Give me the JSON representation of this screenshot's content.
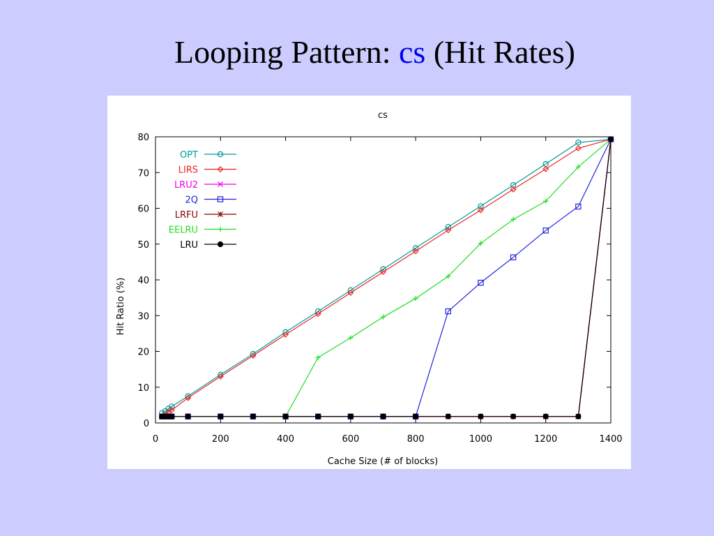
{
  "slide": {
    "title_prefix": "Looping Pattern: ",
    "title_highlight": "cs",
    "title_suffix": " (Hit Rates)"
  },
  "colors": {
    "background": "#ccccff",
    "title_highlight": "#0000ee"
  },
  "chart_data": {
    "type": "line",
    "title": "cs",
    "xlabel": "Cache Size (# of blocks)",
    "ylabel": "Hit Ratio (%)",
    "xlim": [
      0,
      1400
    ],
    "ylim": [
      0,
      80
    ],
    "xticks": [
      0,
      200,
      400,
      600,
      800,
      1000,
      1200,
      1400
    ],
    "yticks": [
      0,
      10,
      20,
      30,
      40,
      50,
      60,
      70,
      80
    ],
    "grid": false,
    "legend_position": "top-left",
    "series": [
      {
        "name": "OPT",
        "color": "#009999",
        "marker": "circle-open",
        "points": [
          [
            20,
            2.8
          ],
          [
            30,
            3.3
          ],
          [
            40,
            4
          ],
          [
            50,
            4.6
          ],
          [
            100,
            7.5
          ],
          [
            200,
            13.5
          ],
          [
            300,
            19.3
          ],
          [
            400,
            25.4
          ],
          [
            500,
            31.2
          ],
          [
            600,
            37.1
          ],
          [
            700,
            43
          ],
          [
            800,
            48.9
          ],
          [
            900,
            54.8
          ],
          [
            1000,
            60.6
          ],
          [
            1100,
            66.5
          ],
          [
            1200,
            72.4
          ],
          [
            1300,
            78.4
          ],
          [
            1400,
            79.3
          ]
        ]
      },
      {
        "name": "LIRS",
        "color": "#ee2222",
        "marker": "diamond-open",
        "points": [
          [
            20,
            1.8
          ],
          [
            30,
            2.4
          ],
          [
            40,
            3
          ],
          [
            50,
            3.6
          ],
          [
            100,
            7
          ],
          [
            200,
            13
          ],
          [
            300,
            18.8
          ],
          [
            400,
            24.7
          ],
          [
            500,
            30.5
          ],
          [
            600,
            36.4
          ],
          [
            700,
            42.2
          ],
          [
            800,
            48
          ],
          [
            900,
            53.9
          ],
          [
            1000,
            59.5
          ],
          [
            1100,
            65.3
          ],
          [
            1200,
            71
          ],
          [
            1300,
            76.8
          ],
          [
            1400,
            79.3
          ]
        ]
      },
      {
        "name": "LRU2",
        "color": "#ee00ee",
        "marker": "x",
        "points": [
          [
            20,
            1.8
          ],
          [
            30,
            1.8
          ],
          [
            40,
            1.8
          ],
          [
            50,
            1.8
          ],
          [
            100,
            1.8
          ],
          [
            200,
            1.8
          ],
          [
            300,
            1.8
          ],
          [
            400,
            1.8
          ],
          [
            500,
            1.8
          ],
          [
            600,
            1.8
          ],
          [
            700,
            1.8
          ],
          [
            800,
            1.8
          ],
          [
            900,
            1.8
          ],
          [
            1000,
            1.8
          ],
          [
            1100,
            1.8
          ],
          [
            1200,
            1.8
          ],
          [
            1300,
            1.8
          ],
          [
            1400,
            79.3
          ]
        ]
      },
      {
        "name": "2Q",
        "color": "#2222dd",
        "marker": "square-open",
        "points": [
          [
            20,
            1.8
          ],
          [
            30,
            1.8
          ],
          [
            40,
            1.8
          ],
          [
            50,
            1.8
          ],
          [
            100,
            1.8
          ],
          [
            200,
            1.8
          ],
          [
            300,
            1.8
          ],
          [
            400,
            1.8
          ],
          [
            500,
            1.8
          ],
          [
            600,
            1.8
          ],
          [
            700,
            1.8
          ],
          [
            800,
            1.8
          ],
          [
            900,
            31.2
          ],
          [
            1000,
            39.2
          ],
          [
            1100,
            46.3
          ],
          [
            1200,
            53.8
          ],
          [
            1300,
            60.5
          ],
          [
            1400,
            79.3
          ]
        ]
      },
      {
        "name": "LRFU",
        "color": "#880000",
        "marker": "star",
        "points": [
          [
            20,
            1.8
          ],
          [
            30,
            1.8
          ],
          [
            40,
            1.8
          ],
          [
            50,
            1.8
          ],
          [
            100,
            1.8
          ],
          [
            200,
            1.8
          ],
          [
            300,
            1.8
          ],
          [
            400,
            1.8
          ],
          [
            500,
            1.8
          ],
          [
            600,
            1.8
          ],
          [
            700,
            1.8
          ],
          [
            800,
            1.8
          ],
          [
            900,
            1.8
          ],
          [
            1000,
            1.8
          ],
          [
            1100,
            1.8
          ],
          [
            1200,
            1.8
          ],
          [
            1300,
            1.8
          ],
          [
            1400,
            79.3
          ]
        ]
      },
      {
        "name": "EELRU",
        "color": "#22dd22",
        "marker": "plus",
        "points": [
          [
            20,
            1.8
          ],
          [
            30,
            1.8
          ],
          [
            40,
            1.8
          ],
          [
            50,
            1.8
          ],
          [
            100,
            1.8
          ],
          [
            200,
            1.8
          ],
          [
            300,
            1.8
          ],
          [
            400,
            1.8
          ],
          [
            500,
            18.3
          ],
          [
            600,
            23.8
          ],
          [
            700,
            29.6
          ],
          [
            800,
            34.8
          ],
          [
            900,
            41
          ],
          [
            1000,
            50.2
          ],
          [
            1100,
            56.9
          ],
          [
            1200,
            62
          ],
          [
            1300,
            71.6
          ],
          [
            1400,
            79.3
          ]
        ]
      },
      {
        "name": "LRU",
        "color": "#000000",
        "marker": "circle-filled",
        "points": [
          [
            20,
            1.8
          ],
          [
            30,
            1.8
          ],
          [
            40,
            1.8
          ],
          [
            50,
            1.8
          ],
          [
            100,
            1.8
          ],
          [
            200,
            1.8
          ],
          [
            300,
            1.8
          ],
          [
            400,
            1.8
          ],
          [
            500,
            1.8
          ],
          [
            600,
            1.8
          ],
          [
            700,
            1.8
          ],
          [
            800,
            1.8
          ],
          [
            900,
            1.8
          ],
          [
            1000,
            1.8
          ],
          [
            1100,
            1.8
          ],
          [
            1200,
            1.8
          ],
          [
            1300,
            1.8
          ],
          [
            1400,
            79.3
          ]
        ]
      }
    ]
  }
}
